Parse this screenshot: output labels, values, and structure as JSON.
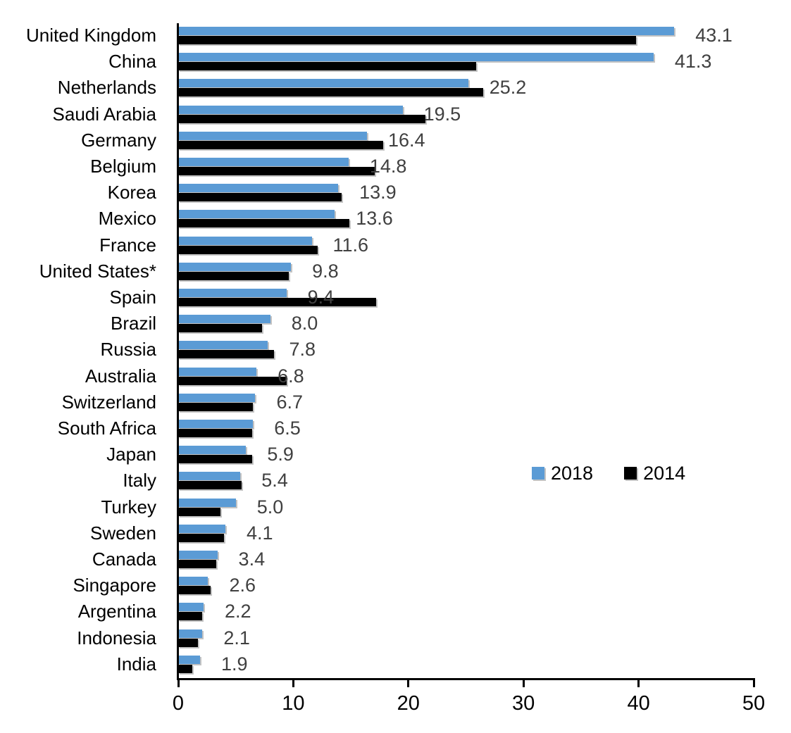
{
  "chart_data": {
    "type": "bar",
    "orientation": "horizontal",
    "title": "",
    "xlabel": "",
    "ylabel": "",
    "xlim": [
      0,
      50
    ],
    "x_ticks": [
      "0",
      "10",
      "20",
      "30",
      "40",
      "50"
    ],
    "grid": false,
    "legend_position": "middle-right",
    "categories": [
      "United Kingdom",
      "China",
      "Netherlands",
      "Saudi Arabia",
      "Germany",
      "Belgium",
      "Korea",
      "Mexico",
      "France",
      "United States*",
      "Spain",
      "Brazil",
      "Russia",
      "Australia",
      "Switzerland",
      "South Africa",
      "Japan",
      "Italy",
      "Turkey",
      "Sweden",
      "Canada",
      "Singapore",
      "Argentina",
      "Indonesia",
      "India"
    ],
    "series": [
      {
        "name": "2018",
        "color": "#5B9BD5",
        "values": [
          43.1,
          41.3,
          25.2,
          19.5,
          16.4,
          14.8,
          13.9,
          13.6,
          11.6,
          9.8,
          9.4,
          8.0,
          7.8,
          6.8,
          6.7,
          6.5,
          5.9,
          5.4,
          5.0,
          4.1,
          3.4,
          2.6,
          2.2,
          2.1,
          1.9
        ]
      },
      {
        "name": "2014",
        "color": "#000000",
        "values": [
          39.8,
          25.9,
          26.5,
          21.5,
          17.8,
          17.1,
          14.2,
          14.9,
          12.1,
          9.6,
          17.2,
          7.3,
          8.3,
          9.4,
          6.5,
          6.4,
          6.4,
          5.5,
          3.7,
          4.0,
          3.3,
          2.8,
          2.1,
          1.7,
          1.2
        ]
      }
    ],
    "data_labels": [
      "43.1",
      "41.3",
      "25.2",
      "19.5",
      "16.4",
      "14.8",
      "13.9",
      "13.6",
      "11.6",
      "9.8",
      "9.4",
      "8.0",
      "7.8",
      "6.8",
      "6.7",
      "6.5",
      "5.9",
      "5.4",
      "5.0",
      "4.1",
      "3.4",
      "2.6",
      "2.2",
      "2.1",
      "1.9"
    ],
    "data_label_series": "2018",
    "legend": [
      {
        "label": "2018",
        "color": "#5B9BD5"
      },
      {
        "label": "2014",
        "color": "#000000"
      }
    ]
  }
}
